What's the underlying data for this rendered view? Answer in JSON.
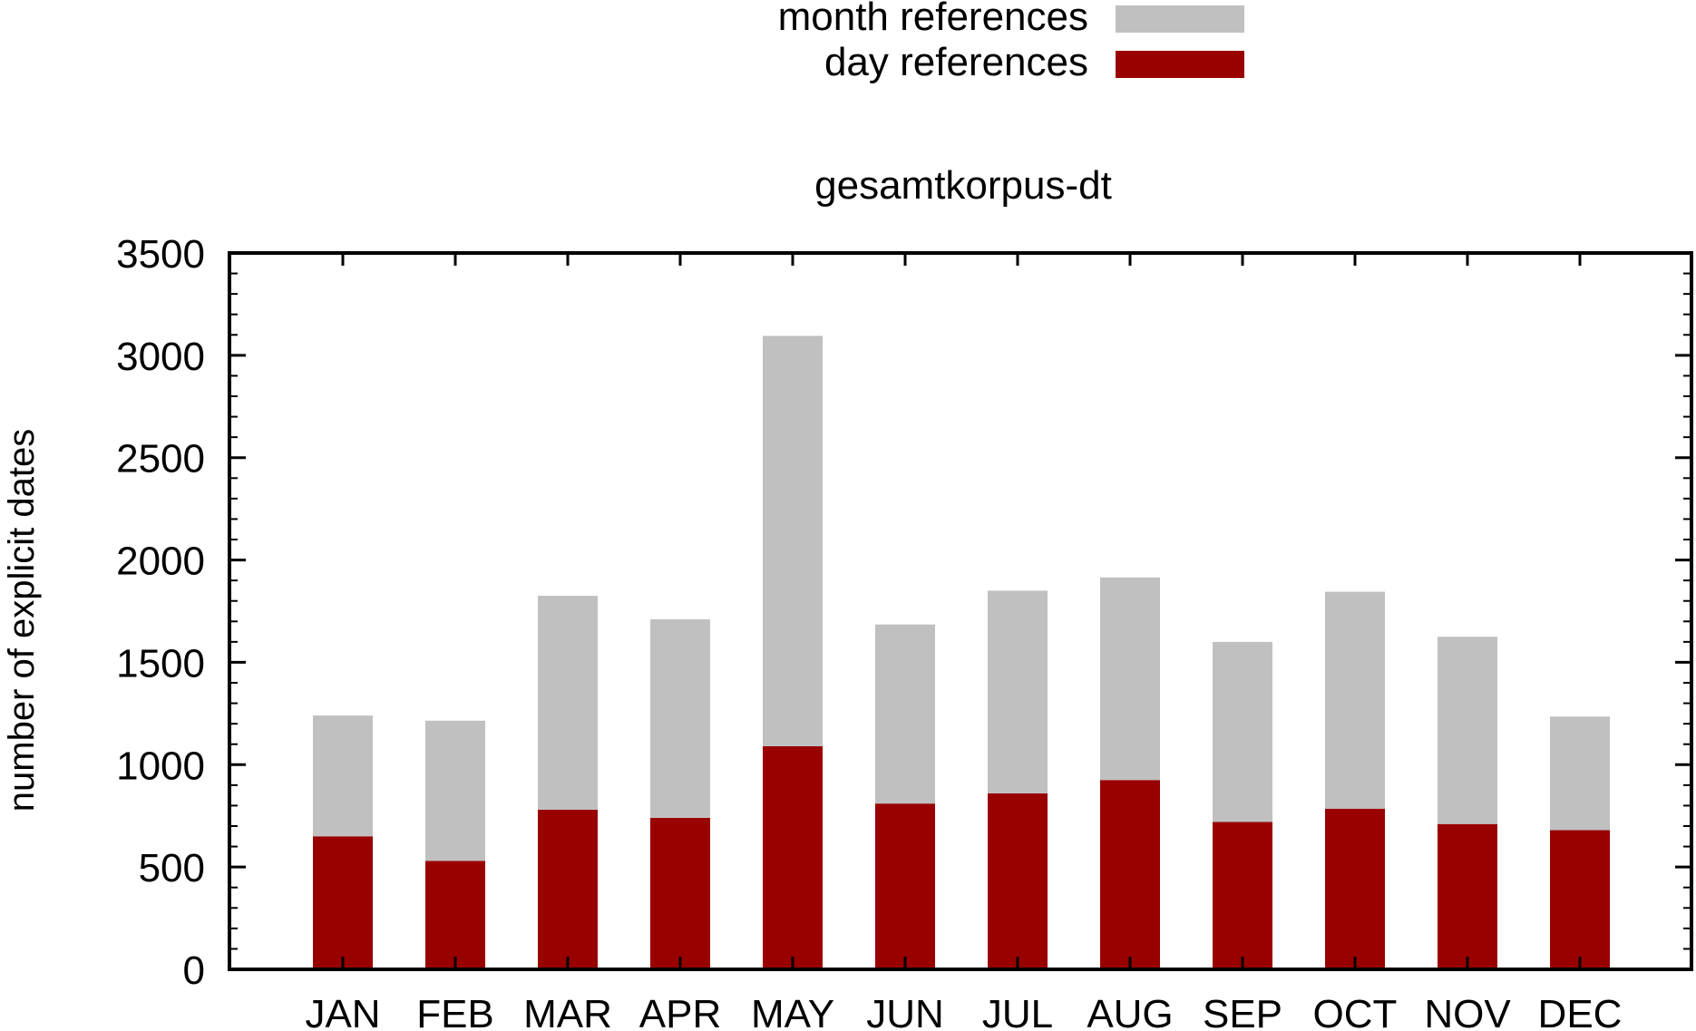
{
  "chart_data": {
    "type": "bar",
    "stacked": true,
    "title": "gesamtkorpus-dt",
    "xlabel": "",
    "ylabel": "number of explicit dates",
    "ylim": [
      0,
      3500
    ],
    "yticks": [
      "0",
      "500",
      "1000",
      "1500",
      "2000",
      "2500",
      "3000",
      "3500"
    ],
    "categories": [
      "JAN",
      "FEB",
      "MAR",
      "APR",
      "MAY",
      "JUN",
      "JUL",
      "AUG",
      "SEP",
      "OCT",
      "NOV",
      "DEC"
    ],
    "series": [
      {
        "name": "day references",
        "color": "#990000",
        "values": [
          650,
          530,
          780,
          740,
          1090,
          810,
          860,
          925,
          720,
          785,
          710,
          680
        ]
      },
      {
        "name": "month references",
        "color": "#c0c0c0",
        "values": [
          590,
          685,
          1045,
          970,
          2005,
          875,
          990,
          990,
          880,
          1060,
          915,
          555
        ]
      }
    ],
    "legend": {
      "placement": "top-center",
      "entries": [
        "month references",
        "day references"
      ]
    },
    "grid": false
  }
}
